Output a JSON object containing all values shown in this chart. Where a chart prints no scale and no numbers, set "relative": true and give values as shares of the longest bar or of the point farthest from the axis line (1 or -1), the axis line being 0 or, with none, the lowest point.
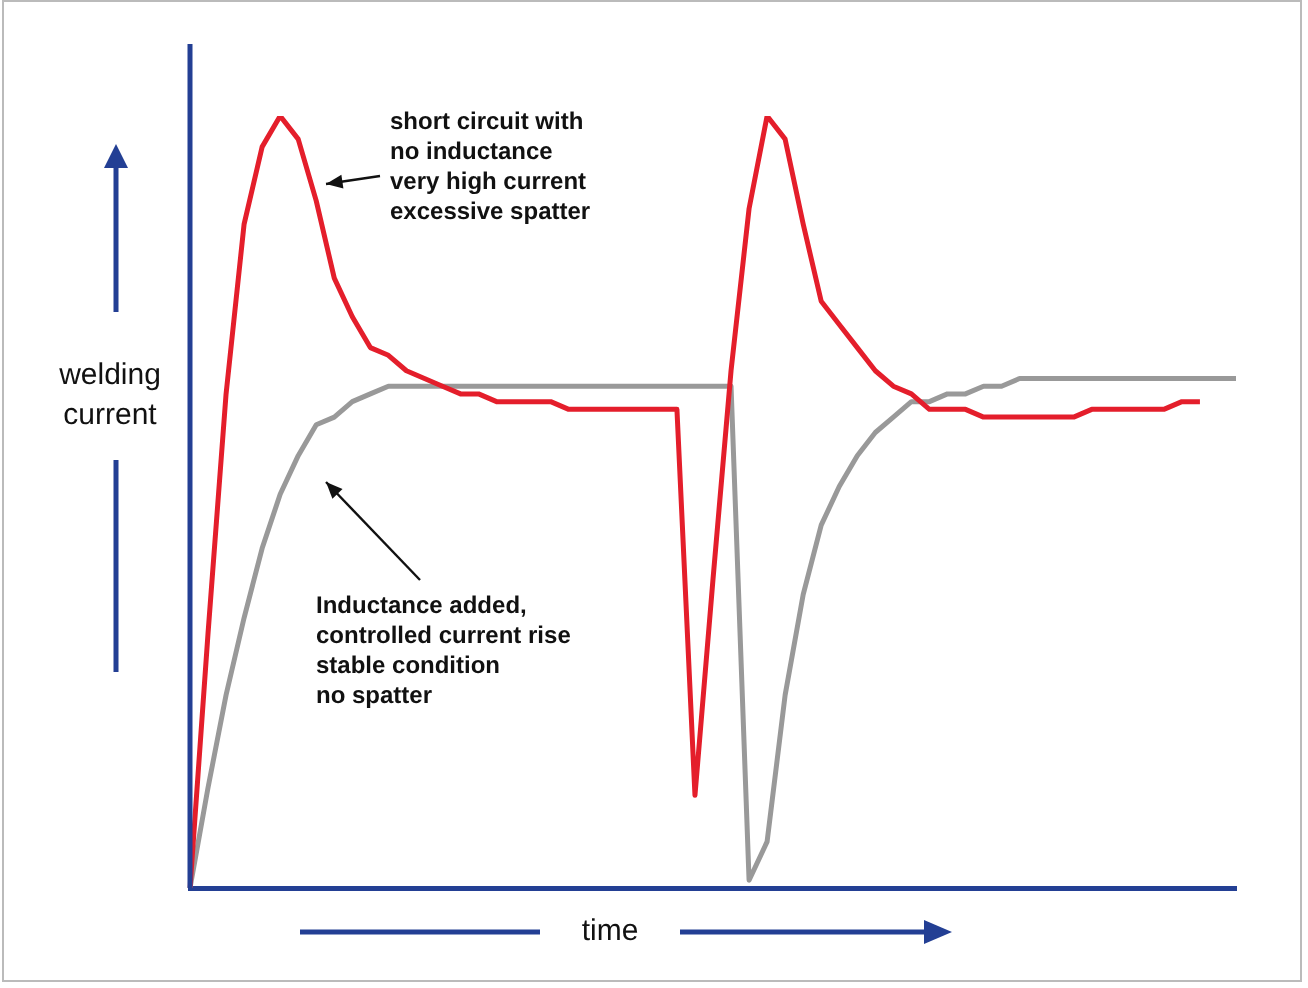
{
  "chart_data": {
    "type": "line",
    "relative": true,
    "xlabel": "time",
    "ylabel": "welding current",
    "marker": "none",
    "grid": false,
    "legend": false,
    "tick_labels": false,
    "categories": [
      null,
      null,
      null,
      null,
      null,
      null,
      null,
      null,
      null,
      null,
      null,
      null,
      null,
      null,
      null,
      null,
      null,
      null,
      null,
      null,
      null,
      null,
      null,
      null,
      null,
      null,
      null,
      null,
      null,
      null,
      null,
      null,
      null,
      null,
      null,
      null,
      null,
      null,
      null,
      null,
      null,
      null,
      null,
      null,
      null,
      null,
      null,
      null,
      null,
      null,
      null,
      null,
      null,
      null,
      null,
      null,
      null,
      null,
      null
    ],
    "annotations": [
      "short circuit with\nno inductance\nvery high current\nexcessive spatter",
      "Inductance added,\ncontrolled current rise\nstable condition\nno spatter"
    ],
    "series": [
      {
        "color": "#e41e2b",
        "values": [
          0,
          0.33,
          0.64,
          0.86,
          0.96,
          1,
          0.97,
          0.89,
          0.79,
          0.74,
          0.7,
          0.69,
          0.67,
          0.66,
          0.65,
          0.64,
          0.64,
          0.63,
          0.63,
          0.63,
          0.63,
          0.62,
          0.62,
          0.62,
          0.62,
          0.62,
          0.62,
          0.62,
          0.12,
          0.4,
          0.67,
          0.88,
          1,
          0.97,
          0.86,
          0.76,
          0.73,
          0.7,
          0.67,
          0.65,
          0.64,
          0.62,
          0.62,
          0.62,
          0.61,
          0.61,
          0.61,
          0.61,
          0.61,
          0.61,
          0.62,
          0.62,
          0.62,
          0.62,
          0.62,
          0.63,
          0.63,
          null,
          null
        ]
      },
      {
        "color": "#999999",
        "values": [
          0,
          0.13,
          0.25,
          0.35,
          0.44,
          0.51,
          0.56,
          0.6,
          0.61,
          0.63,
          0.64,
          0.65,
          0.65,
          0.65,
          0.65,
          0.65,
          0.65,
          0.65,
          0.65,
          0.65,
          0.65,
          0.65,
          0.65,
          0.65,
          0.65,
          0.65,
          0.65,
          0.65,
          0.65,
          0.65,
          0.65,
          0.01,
          0.06,
          0.25,
          0.38,
          0.47,
          0.52,
          0.56,
          0.59,
          0.61,
          0.63,
          0.63,
          0.64,
          0.64,
          0.65,
          0.65,
          0.66,
          0.66,
          0.66,
          0.66,
          0.66,
          0.66,
          0.66,
          0.66,
          0.66,
          0.66,
          0.66,
          0.66,
          0.66
        ]
      }
    ]
  }
}
